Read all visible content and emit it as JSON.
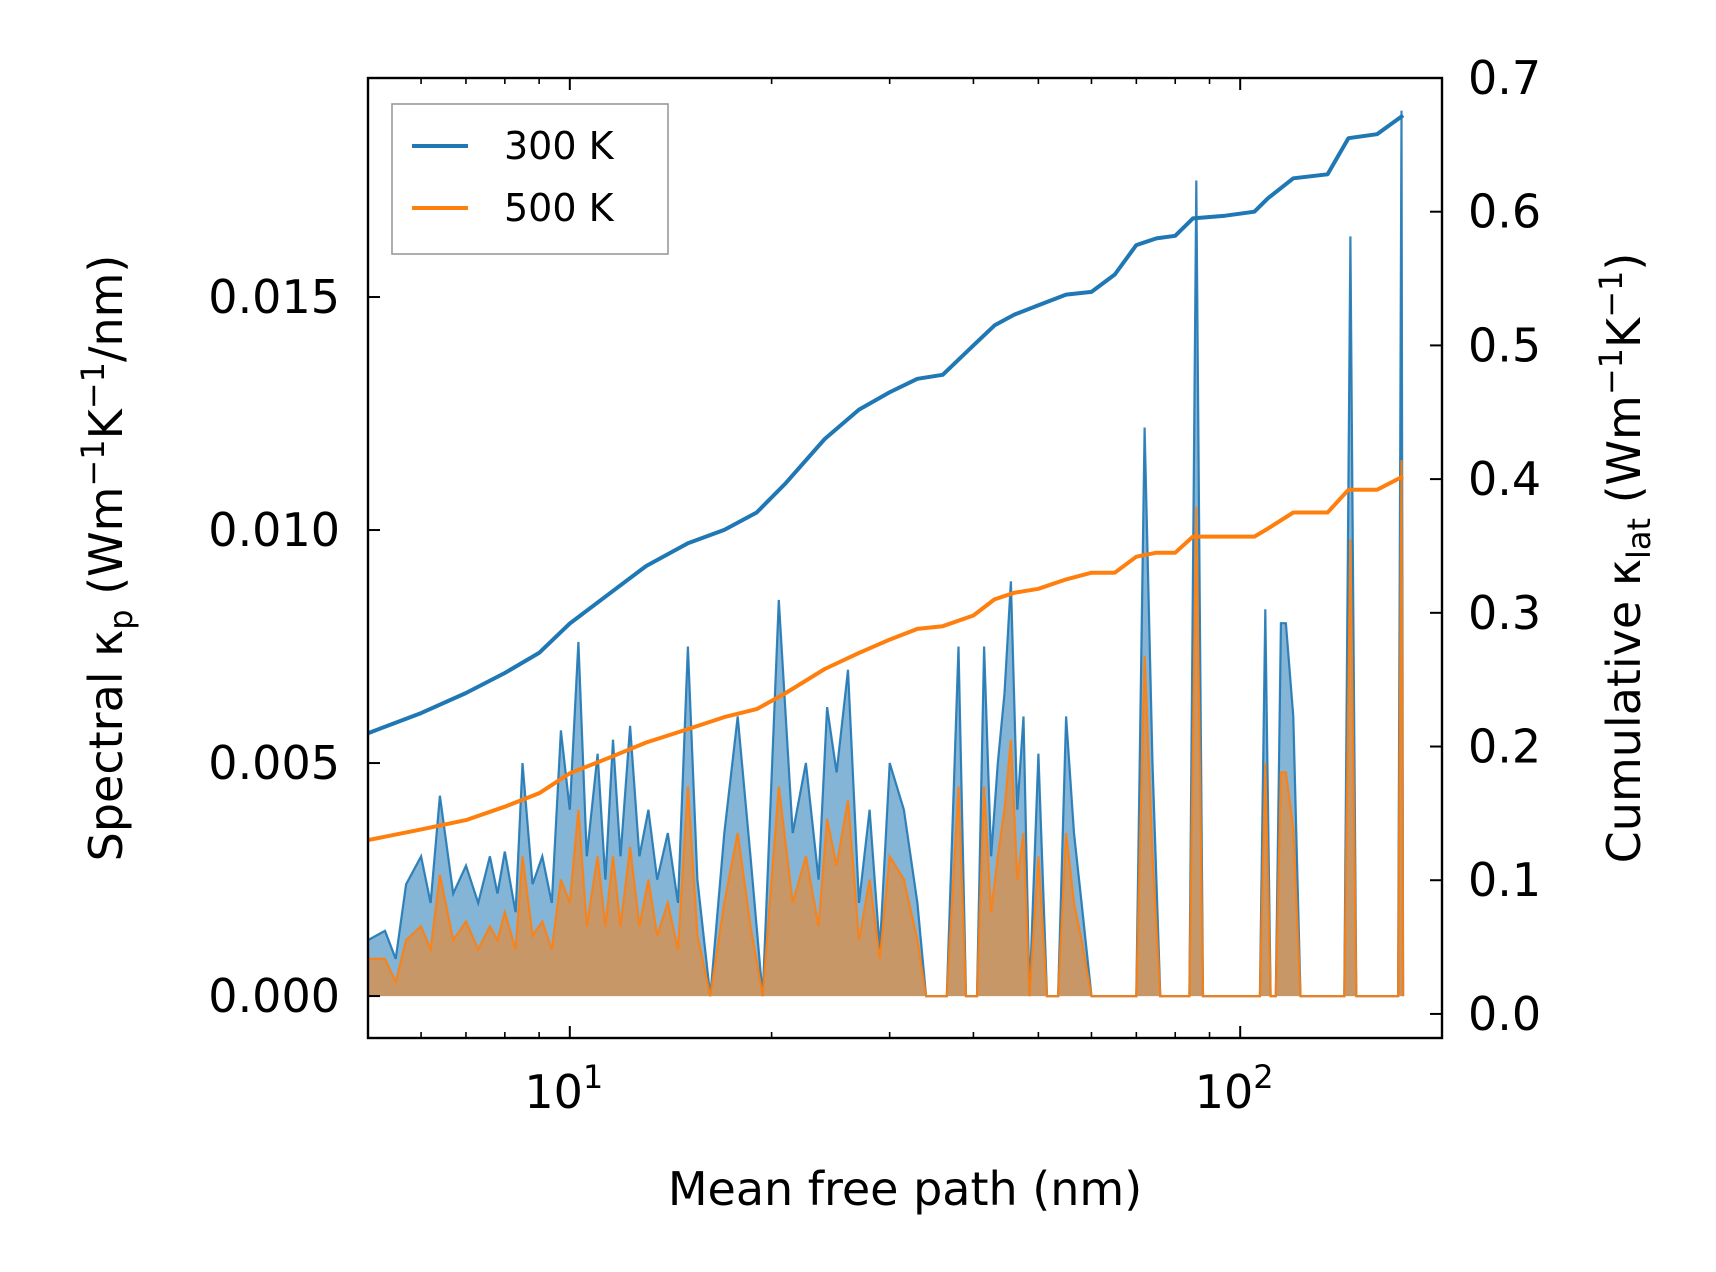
{
  "chart_data": {
    "type": "line",
    "xlabel": "Mean free path (nm)",
    "ylabel_left": {
      "base": "Spectral κ",
      "sub": "p",
      "unit_open": " (Wm",
      "sup1": "−1",
      "mid": "K",
      "sup2": "−1",
      "tail": "/nm)"
    },
    "ylabel_right": {
      "base": "Cumulative κ",
      "sub": "lat",
      "unit_open": " (Wm",
      "sup1": "−1",
      "mid": "K",
      "sup2": "−1",
      "tail": ")"
    },
    "x_scale": "log",
    "xlim": [
      5,
      200
    ],
    "x_ticks": [
      {
        "base": "10",
        "exp": "1",
        "value": 10
      },
      {
        "base": "10",
        "exp": "2",
        "value": 100
      }
    ],
    "ylim_left": [
      -0.0009,
      0.0197
    ],
    "ylim_right": [
      -0.018,
      0.7
    ],
    "yticks_left": [
      {
        "value": 0.0,
        "label": "0.000"
      },
      {
        "value": 0.005,
        "label": "0.005"
      },
      {
        "value": 0.01,
        "label": "0.010"
      },
      {
        "value": 0.015,
        "label": "0.015"
      }
    ],
    "yticks_right": [
      {
        "value": 0.0,
        "label": "0.0"
      },
      {
        "value": 0.1,
        "label": "0.1"
      },
      {
        "value": 0.2,
        "label": "0.2"
      },
      {
        "value": 0.3,
        "label": "0.3"
      },
      {
        "value": 0.4,
        "label": "0.4"
      },
      {
        "value": 0.5,
        "label": "0.5"
      },
      {
        "value": 0.6,
        "label": "0.6"
      },
      {
        "value": 0.7,
        "label": "0.7"
      }
    ],
    "legend": {
      "position": "top-left",
      "entries": [
        {
          "label": "300 K",
          "color": "#1f77b4"
        },
        {
          "label": "500 K",
          "color": "#ff7f0e"
        }
      ]
    },
    "series": [
      {
        "name": "300 K",
        "color": "#1f77b4",
        "cumulative": [
          [
            5.0,
            0.21
          ],
          [
            6.0,
            0.225
          ],
          [
            7.0,
            0.24
          ],
          [
            8.0,
            0.255
          ],
          [
            9.0,
            0.27
          ],
          [
            10.0,
            0.292
          ],
          [
            11.5,
            0.315
          ],
          [
            13.0,
            0.335
          ],
          [
            15.0,
            0.352
          ],
          [
            17.0,
            0.362
          ],
          [
            19.0,
            0.375
          ],
          [
            21.0,
            0.397
          ],
          [
            24.0,
            0.43
          ],
          [
            27.0,
            0.452
          ],
          [
            30.0,
            0.465
          ],
          [
            33.0,
            0.475
          ],
          [
            36.0,
            0.478
          ],
          [
            40.0,
            0.5
          ],
          [
            43.0,
            0.515
          ],
          [
            46.0,
            0.523
          ],
          [
            50.0,
            0.53
          ],
          [
            55.0,
            0.538
          ],
          [
            60.0,
            0.54
          ],
          [
            65.0,
            0.553
          ],
          [
            70.0,
            0.575
          ],
          [
            75.0,
            0.58
          ],
          [
            80.0,
            0.582
          ],
          [
            85.0,
            0.595
          ],
          [
            95.0,
            0.597
          ],
          [
            105.0,
            0.6
          ],
          [
            110.0,
            0.61
          ],
          [
            120.0,
            0.625
          ],
          [
            135.0,
            0.628
          ],
          [
            145.0,
            0.655
          ],
          [
            160.0,
            0.658
          ],
          [
            175.0,
            0.672
          ]
        ],
        "spectral": [
          [
            5.0,
            0.0012
          ],
          [
            5.3,
            0.0014
          ],
          [
            5.5,
            0.0008
          ],
          [
            5.7,
            0.0024
          ],
          [
            6.0,
            0.003
          ],
          [
            6.2,
            0.002
          ],
          [
            6.4,
            0.0043
          ],
          [
            6.7,
            0.0022
          ],
          [
            7.0,
            0.0028
          ],
          [
            7.3,
            0.002
          ],
          [
            7.6,
            0.003
          ],
          [
            7.8,
            0.0022
          ],
          [
            8.0,
            0.0031
          ],
          [
            8.3,
            0.0018
          ],
          [
            8.5,
            0.005
          ],
          [
            8.8,
            0.0024
          ],
          [
            9.1,
            0.003
          ],
          [
            9.4,
            0.002
          ],
          [
            9.7,
            0.0057
          ],
          [
            10.0,
            0.004
          ],
          [
            10.3,
            0.0076
          ],
          [
            10.6,
            0.003
          ],
          [
            11.0,
            0.0052
          ],
          [
            11.3,
            0.0025
          ],
          [
            11.6,
            0.0055
          ],
          [
            11.9,
            0.003
          ],
          [
            12.3,
            0.0058
          ],
          [
            12.7,
            0.003
          ],
          [
            13.1,
            0.004
          ],
          [
            13.5,
            0.0025
          ],
          [
            14.0,
            0.0035
          ],
          [
            14.5,
            0.002
          ],
          [
            15.0,
            0.0075
          ],
          [
            15.5,
            0.0025
          ],
          [
            16.2,
            0.0
          ],
          [
            17.0,
            0.0035
          ],
          [
            17.8,
            0.006
          ],
          [
            18.6,
            0.003
          ],
          [
            19.4,
            0.0
          ],
          [
            20.5,
            0.0085
          ],
          [
            21.5,
            0.0035
          ],
          [
            22.5,
            0.005
          ],
          [
            23.5,
            0.0025
          ],
          [
            24.2,
            0.0062
          ],
          [
            25.0,
            0.0048
          ],
          [
            26.0,
            0.007
          ],
          [
            27.0,
            0.002
          ],
          [
            28.0,
            0.004
          ],
          [
            29.0,
            0.001
          ],
          [
            30.0,
            0.005
          ],
          [
            31.5,
            0.004
          ],
          [
            33.0,
            0.002
          ],
          [
            34.0,
            0.0
          ],
          [
            35.5,
            0.0
          ],
          [
            36.5,
            0.0
          ],
          [
            38.0,
            0.0075
          ],
          [
            39.0,
            0.0
          ],
          [
            40.5,
            0.0
          ],
          [
            41.5,
            0.0075
          ],
          [
            42.5,
            0.003
          ],
          [
            43.5,
            0.005
          ],
          [
            44.5,
            0.0065
          ],
          [
            45.5,
            0.0089
          ],
          [
            46.5,
            0.004
          ],
          [
            47.5,
            0.006
          ],
          [
            48.5,
            0.0
          ],
          [
            50.0,
            0.0052
          ],
          [
            51.5,
            0.0
          ],
          [
            53.5,
            0.0
          ],
          [
            55.0,
            0.006
          ],
          [
            56.5,
            0.0035
          ],
          [
            58.0,
            0.002
          ],
          [
            60.0,
            0.0
          ],
          [
            65.0,
            0.0
          ],
          [
            70.0,
            0.0
          ],
          [
            72.0,
            0.0122
          ],
          [
            74.0,
            0.005
          ],
          [
            76.0,
            0.0
          ],
          [
            80.0,
            0.0
          ],
          [
            84.0,
            0.0
          ],
          [
            86.0,
            0.0175
          ],
          [
            88.0,
            0.0
          ],
          [
            100.0,
            0.0
          ],
          [
            107.0,
            0.0
          ],
          [
            109.0,
            0.0083
          ],
          [
            111.0,
            0.0
          ],
          [
            113.0,
            0.0
          ],
          [
            115.0,
            0.008
          ],
          [
            117.0,
            0.008
          ],
          [
            120.0,
            0.006
          ],
          [
            123.0,
            0.0
          ],
          [
            140.0,
            0.0
          ],
          [
            143.0,
            0.0
          ],
          [
            146.0,
            0.0163
          ],
          [
            149.0,
            0.0
          ],
          [
            170.0,
            0.0
          ],
          [
            172.0,
            0.0
          ],
          [
            174.0,
            0.019
          ],
          [
            175.0,
            0.0
          ]
        ]
      },
      {
        "name": "500 K",
        "color": "#ff7f0e",
        "cumulative": [
          [
            5.0,
            0.13
          ],
          [
            6.0,
            0.138
          ],
          [
            7.0,
            0.145
          ],
          [
            8.0,
            0.155
          ],
          [
            9.0,
            0.165
          ],
          [
            10.0,
            0.18
          ],
          [
            11.5,
            0.192
          ],
          [
            13.0,
            0.203
          ],
          [
            15.0,
            0.213
          ],
          [
            17.0,
            0.222
          ],
          [
            19.0,
            0.228
          ],
          [
            21.0,
            0.24
          ],
          [
            24.0,
            0.258
          ],
          [
            27.0,
            0.27
          ],
          [
            30.0,
            0.28
          ],
          [
            33.0,
            0.288
          ],
          [
            36.0,
            0.29
          ],
          [
            40.0,
            0.298
          ],
          [
            43.0,
            0.31
          ],
          [
            46.0,
            0.315
          ],
          [
            50.0,
            0.318
          ],
          [
            55.0,
            0.325
          ],
          [
            60.0,
            0.33
          ],
          [
            65.0,
            0.33
          ],
          [
            70.0,
            0.342
          ],
          [
            75.0,
            0.345
          ],
          [
            80.0,
            0.345
          ],
          [
            85.0,
            0.357
          ],
          [
            95.0,
            0.357
          ],
          [
            105.0,
            0.357
          ],
          [
            110.0,
            0.363
          ],
          [
            120.0,
            0.375
          ],
          [
            135.0,
            0.375
          ],
          [
            145.0,
            0.392
          ],
          [
            160.0,
            0.392
          ],
          [
            175.0,
            0.402
          ]
        ],
        "spectral": [
          [
            5.0,
            0.0008
          ],
          [
            5.3,
            0.0008
          ],
          [
            5.5,
            0.0003
          ],
          [
            5.7,
            0.0012
          ],
          [
            6.0,
            0.0015
          ],
          [
            6.2,
            0.001
          ],
          [
            6.4,
            0.0026
          ],
          [
            6.7,
            0.0012
          ],
          [
            7.0,
            0.0016
          ],
          [
            7.3,
            0.001
          ],
          [
            7.6,
            0.0015
          ],
          [
            7.8,
            0.0012
          ],
          [
            8.0,
            0.0018
          ],
          [
            8.3,
            0.001
          ],
          [
            8.5,
            0.003
          ],
          [
            8.8,
            0.0013
          ],
          [
            9.1,
            0.0016
          ],
          [
            9.4,
            0.001
          ],
          [
            9.7,
            0.0025
          ],
          [
            10.0,
            0.002
          ],
          [
            10.3,
            0.004
          ],
          [
            10.6,
            0.0015
          ],
          [
            11.0,
            0.003
          ],
          [
            11.3,
            0.0015
          ],
          [
            11.6,
            0.003
          ],
          [
            11.9,
            0.0015
          ],
          [
            12.3,
            0.0032
          ],
          [
            12.7,
            0.0015
          ],
          [
            13.1,
            0.0025
          ],
          [
            13.5,
            0.0013
          ],
          [
            14.0,
            0.002
          ],
          [
            14.5,
            0.001
          ],
          [
            15.0,
            0.0045
          ],
          [
            15.5,
            0.0013
          ],
          [
            16.2,
            0.0
          ],
          [
            17.0,
            0.002
          ],
          [
            17.8,
            0.0035
          ],
          [
            18.6,
            0.0015
          ],
          [
            19.4,
            0.0
          ],
          [
            20.5,
            0.0045
          ],
          [
            21.5,
            0.002
          ],
          [
            22.5,
            0.003
          ],
          [
            23.5,
            0.0015
          ],
          [
            24.2,
            0.0038
          ],
          [
            25.0,
            0.0028
          ],
          [
            26.0,
            0.0042
          ],
          [
            27.0,
            0.0012
          ],
          [
            28.0,
            0.0025
          ],
          [
            29.0,
            0.0008
          ],
          [
            30.0,
            0.003
          ],
          [
            31.5,
            0.0025
          ],
          [
            33.0,
            0.0012
          ],
          [
            34.0,
            0.0
          ],
          [
            35.5,
            0.0
          ],
          [
            36.5,
            0.0
          ],
          [
            38.0,
            0.0045
          ],
          [
            39.0,
            0.0
          ],
          [
            40.5,
            0.0
          ],
          [
            41.5,
            0.0045
          ],
          [
            42.5,
            0.0018
          ],
          [
            43.5,
            0.003
          ],
          [
            44.5,
            0.004
          ],
          [
            45.5,
            0.0055
          ],
          [
            46.5,
            0.0025
          ],
          [
            47.5,
            0.0035
          ],
          [
            48.5,
            0.0
          ],
          [
            50.0,
            0.003
          ],
          [
            51.5,
            0.0
          ],
          [
            53.5,
            0.0
          ],
          [
            55.0,
            0.0035
          ],
          [
            56.5,
            0.002
          ],
          [
            58.0,
            0.0012
          ],
          [
            60.0,
            0.0
          ],
          [
            65.0,
            0.0
          ],
          [
            70.0,
            0.0
          ],
          [
            72.0,
            0.0073
          ],
          [
            74.0,
            0.003
          ],
          [
            76.0,
            0.0
          ],
          [
            80.0,
            0.0
          ],
          [
            84.0,
            0.0
          ],
          [
            86.0,
            0.0105
          ],
          [
            88.0,
            0.0
          ],
          [
            100.0,
            0.0
          ],
          [
            107.0,
            0.0
          ],
          [
            109.0,
            0.005
          ],
          [
            111.0,
            0.0
          ],
          [
            113.0,
            0.0
          ],
          [
            115.0,
            0.0048
          ],
          [
            117.0,
            0.0048
          ],
          [
            120.0,
            0.0036
          ],
          [
            123.0,
            0.0
          ],
          [
            140.0,
            0.0
          ],
          [
            143.0,
            0.0
          ],
          [
            146.0,
            0.0098
          ],
          [
            149.0,
            0.0
          ],
          [
            170.0,
            0.0
          ],
          [
            172.0,
            0.0
          ],
          [
            174.0,
            0.0115
          ],
          [
            175.0,
            0.0
          ]
        ]
      }
    ]
  }
}
